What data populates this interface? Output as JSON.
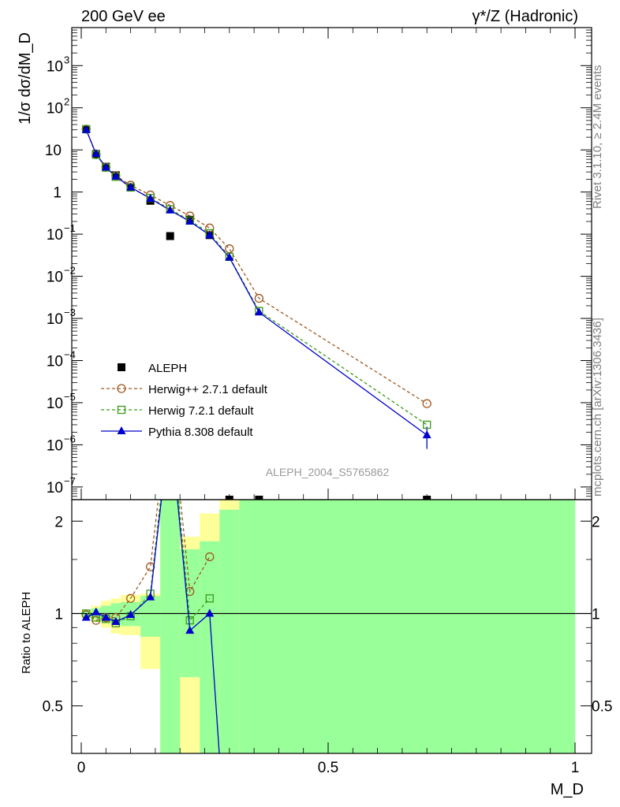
{
  "chart_data": {
    "type": "line",
    "title_left": "200 GeV ee",
    "title_right": "γ*/Z (Hadronic)",
    "xlabel": "M_D",
    "ylabel_main": "1/σ dσ/dM_D",
    "ylabel_ratio": "Ratio to ALEPH",
    "side_label_top": "Rivet 3.1.10, ≥ 2.4M events",
    "side_label_bottom": "mcplots.cern.ch [arXiv:1306.3436]",
    "watermark": "ALEPH_2004_S5765862",
    "xlim": [
      0,
      1
    ],
    "ylim_main": [
      5e-08,
      8000
    ],
    "ylim_ratio": [
      0.35,
      2.35
    ],
    "y_scale_main": "log",
    "x_ticks": [
      {
        "v": 0,
        "label": "0"
      },
      {
        "v": 0.5,
        "label": "0.5"
      },
      {
        "v": 1,
        "label": "1"
      }
    ],
    "y_ticks_main": [
      {
        "exp": 3,
        "label": "10",
        "sup": "3"
      },
      {
        "exp": 2,
        "label": "10",
        "sup": "2"
      },
      {
        "exp": 1,
        "label": "10",
        "sup": ""
      },
      {
        "exp": 0,
        "label": "1",
        "sup": ""
      },
      {
        "exp": -1,
        "label": "10",
        "sup": "−1"
      },
      {
        "exp": -2,
        "label": "10",
        "sup": "−2"
      },
      {
        "exp": -3,
        "label": "10",
        "sup": "−3"
      },
      {
        "exp": -4,
        "label": "10",
        "sup": "−4"
      },
      {
        "exp": -5,
        "label": "10",
        "sup": "−5"
      },
      {
        "exp": -6,
        "label": "10",
        "sup": "−6"
      },
      {
        "exp": -7,
        "label": "10",
        "sup": "−7"
      }
    ],
    "y_ticks_ratio": [
      {
        "v": 0.5,
        "label": "0.5"
      },
      {
        "v": 1,
        "label": "1"
      },
      {
        "v": 2,
        "label": "2"
      }
    ],
    "legend_position": "lower-left",
    "series": [
      {
        "name": "ALEPH",
        "style": "data",
        "color": "#000000",
        "marker": "filled-square",
        "x": [
          0.01,
          0.03,
          0.05,
          0.07,
          0.1,
          0.14,
          0.18,
          0.22,
          0.26,
          0.3,
          0.36,
          0.7
        ],
        "y": [
          31,
          8.0,
          4.0,
          2.5,
          1.3,
          0.62,
          0.09,
          0.22,
          0.095,
          5e-08,
          5e-08,
          5e-08
        ]
      },
      {
        "name": "Herwig++ 2.7.1 default",
        "style": "dashed",
        "color": "#a0561d",
        "marker": "open-circle",
        "x": [
          0.01,
          0.03,
          0.05,
          0.07,
          0.1,
          0.14,
          0.18,
          0.22,
          0.26,
          0.3,
          0.36,
          0.7
        ],
        "y": [
          31,
          7.7,
          3.9,
          2.45,
          1.45,
          0.85,
          0.48,
          0.27,
          0.14,
          0.045,
          0.003,
          9.5e-06
        ]
      },
      {
        "name": "Herwig 7.2.1 default",
        "style": "dashed",
        "color": "#3a9a1a",
        "marker": "open-square",
        "x": [
          0.01,
          0.03,
          0.05,
          0.07,
          0.1,
          0.14,
          0.18,
          0.22,
          0.26,
          0.3,
          0.36,
          0.7
        ],
        "y": [
          31,
          7.7,
          3.8,
          2.3,
          1.28,
          0.72,
          0.39,
          0.21,
          0.105,
          0.029,
          0.0015,
          3e-06
        ]
      },
      {
        "name": "Pythia 8.308 default",
        "style": "solid",
        "color": "#0000cc",
        "marker": "filled-triangle",
        "x": [
          0.01,
          0.03,
          0.05,
          0.07,
          0.1,
          0.14,
          0.18,
          0.22,
          0.26,
          0.3,
          0.36,
          0.7
        ],
        "y": [
          30,
          8.1,
          3.85,
          2.35,
          1.3,
          0.7,
          0.37,
          0.2,
          0.095,
          0.028,
          0.0014,
          1.7e-06
        ],
        "yerr_last": [
          8e-07,
          2.7e-06
        ]
      }
    ],
    "ratio_series": [
      {
        "name": "Herwig++ 2.7.1 default",
        "x": [
          0.01,
          0.03,
          0.05,
          0.07,
          0.1,
          0.14,
          0.18,
          0.22,
          0.26
        ],
        "y": [
          0.99,
          0.95,
          0.97,
          0.97,
          1.12,
          1.42,
          5.0,
          1.18,
          1.53
        ]
      },
      {
        "name": "Herwig 7.2.1 default",
        "x": [
          0.01,
          0.03,
          0.05,
          0.07,
          0.1,
          0.14,
          0.18,
          0.22,
          0.26
        ],
        "y": [
          1.0,
          0.97,
          0.96,
          0.93,
          0.98,
          1.16,
          4.6,
          0.95,
          1.12
        ]
      },
      {
        "name": "Pythia 8.308 default",
        "x": [
          0.01,
          0.03,
          0.05,
          0.07,
          0.1,
          0.14,
          0.18,
          0.22,
          0.26,
          0.29
        ],
        "y": [
          0.97,
          1.01,
          0.97,
          0.94,
          0.99,
          1.13,
          4.2,
          0.88,
          1.0,
          0.2
        ]
      }
    ],
    "ratio_bands": [
      {
        "x0": 0.0,
        "x1": 0.02,
        "yellow": [
          0.97,
          1.03
        ],
        "green": [
          0.985,
          1.015
        ]
      },
      {
        "x0": 0.02,
        "x1": 0.04,
        "yellow": [
          0.94,
          1.06
        ],
        "green": [
          0.96,
          1.04
        ]
      },
      {
        "x0": 0.04,
        "x1": 0.06,
        "yellow": [
          0.9,
          1.1
        ],
        "green": [
          0.94,
          1.06
        ]
      },
      {
        "x0": 0.06,
        "x1": 0.08,
        "yellow": [
          0.86,
          1.12
        ],
        "green": [
          0.92,
          1.08
        ]
      },
      {
        "x0": 0.08,
        "x1": 0.12,
        "yellow": [
          0.85,
          1.15
        ],
        "green": [
          0.91,
          1.09
        ]
      },
      {
        "x0": 0.12,
        "x1": 0.16,
        "yellow": [
          0.66,
          1.16
        ],
        "green": [
          0.84,
          1.14
        ]
      },
      {
        "x0": 0.16,
        "x1": 0.2,
        "yellow": [
          0.35,
          2.35
        ],
        "green": [
          0.35,
          2.35
        ]
      },
      {
        "x0": 0.2,
        "x1": 0.24,
        "yellow": [
          0.35,
          1.78
        ],
        "green": [
          0.62,
          1.62
        ]
      },
      {
        "x0": 0.24,
        "x1": 0.28,
        "yellow": [
          0.35,
          2.12
        ],
        "green": [
          0.35,
          1.72
        ]
      },
      {
        "x0": 0.28,
        "x1": 0.32,
        "yellow": [
          0.35,
          2.35
        ],
        "green": [
          0.35,
          2.18
        ]
      },
      {
        "x0": 0.32,
        "x1": 1.0,
        "yellow": [
          0.35,
          2.35
        ],
        "green": [
          0.35,
          2.35
        ]
      }
    ],
    "band_colors": {
      "yellow": "#ffff99",
      "green": "#99ff99"
    }
  }
}
